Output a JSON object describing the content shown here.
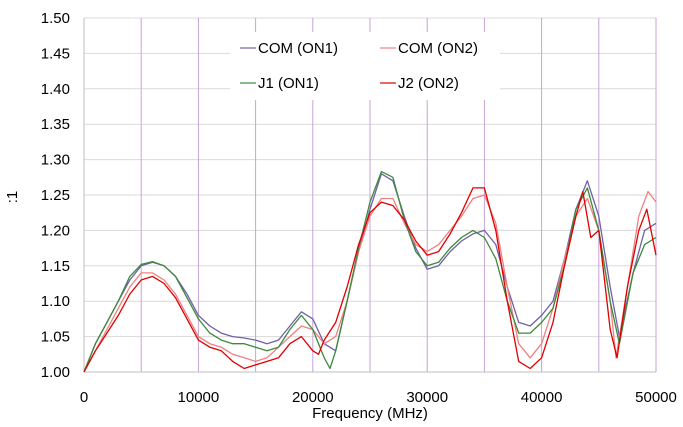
{
  "chart_data": {
    "type": "line",
    "xlabel": "Frequency (MHz)",
    "ylabel": ":1",
    "xlim": [
      0,
      50000
    ],
    "ylim": [
      1.0,
      1.5
    ],
    "x_ticks": [
      "0",
      "10000",
      "20000",
      "30000",
      "40000",
      "50000"
    ],
    "y_ticks": [
      "1.00",
      "1.05",
      "1.10",
      "1.15",
      "1.20",
      "1.25",
      "1.30",
      "1.35",
      "1.40",
      "1.45",
      "1.50"
    ],
    "grid": true,
    "vertical_gridlines_every": 5000,
    "legend_position": "top-center",
    "series": [
      {
        "name": "COM (ON1)",
        "color": "#7060A8",
        "points": [
          [
            0,
            1.0
          ],
          [
            1000,
            1.04
          ],
          [
            2000,
            1.07
          ],
          [
            3000,
            1.1
          ],
          [
            4000,
            1.13
          ],
          [
            5000,
            1.15
          ],
          [
            6000,
            1.155
          ],
          [
            7000,
            1.15
          ],
          [
            8000,
            1.135
          ],
          [
            9000,
            1.11
          ],
          [
            10000,
            1.08
          ],
          [
            11000,
            1.065
          ],
          [
            12000,
            1.055
          ],
          [
            13000,
            1.05
          ],
          [
            14000,
            1.048
          ],
          [
            15000,
            1.045
          ],
          [
            16000,
            1.04
          ],
          [
            17000,
            1.045
          ],
          [
            18000,
            1.065
          ],
          [
            19000,
            1.085
          ],
          [
            20000,
            1.075
          ],
          [
            21000,
            1.04
          ],
          [
            22000,
            1.03
          ],
          [
            23000,
            1.1
          ],
          [
            24000,
            1.17
          ],
          [
            25000,
            1.23
          ],
          [
            26000,
            1.28
          ],
          [
            27000,
            1.27
          ],
          [
            28000,
            1.22
          ],
          [
            29000,
            1.175
          ],
          [
            30000,
            1.145
          ],
          [
            31000,
            1.15
          ],
          [
            32000,
            1.17
          ],
          [
            33000,
            1.185
          ],
          [
            34000,
            1.195
          ],
          [
            35000,
            1.2
          ],
          [
            36000,
            1.18
          ],
          [
            37000,
            1.12
          ],
          [
            38000,
            1.07
          ],
          [
            39000,
            1.065
          ],
          [
            40000,
            1.08
          ],
          [
            41000,
            1.1
          ],
          [
            42000,
            1.16
          ],
          [
            43000,
            1.23
          ],
          [
            44000,
            1.27
          ],
          [
            45000,
            1.22
          ],
          [
            46000,
            1.12
          ],
          [
            46800,
            1.05
          ],
          [
            48000,
            1.14
          ],
          [
            49000,
            1.2
          ],
          [
            50000,
            1.21
          ]
        ]
      },
      {
        "name": "COM (ON2)",
        "color": "#F08080",
        "points": [
          [
            0,
            1.0
          ],
          [
            1000,
            1.03
          ],
          [
            2000,
            1.06
          ],
          [
            3000,
            1.09
          ],
          [
            4000,
            1.12
          ],
          [
            5000,
            1.14
          ],
          [
            6000,
            1.14
          ],
          [
            7000,
            1.13
          ],
          [
            8000,
            1.11
          ],
          [
            9000,
            1.08
          ],
          [
            10000,
            1.05
          ],
          [
            11000,
            1.04
          ],
          [
            12000,
            1.035
          ],
          [
            13000,
            1.025
          ],
          [
            14000,
            1.02
          ],
          [
            15000,
            1.015
          ],
          [
            16000,
            1.02
          ],
          [
            17000,
            1.035
          ],
          [
            18000,
            1.05
          ],
          [
            19000,
            1.065
          ],
          [
            20000,
            1.06
          ],
          [
            21000,
            1.04
          ],
          [
            22000,
            1.05
          ],
          [
            23000,
            1.1
          ],
          [
            24000,
            1.17
          ],
          [
            25000,
            1.22
          ],
          [
            26000,
            1.245
          ],
          [
            27000,
            1.245
          ],
          [
            28000,
            1.21
          ],
          [
            29000,
            1.18
          ],
          [
            30000,
            1.17
          ],
          [
            31000,
            1.18
          ],
          [
            32000,
            1.2
          ],
          [
            33000,
            1.22
          ],
          [
            34000,
            1.245
          ],
          [
            35000,
            1.25
          ],
          [
            36000,
            1.21
          ],
          [
            37000,
            1.12
          ],
          [
            38000,
            1.04
          ],
          [
            39000,
            1.02
          ],
          [
            40000,
            1.04
          ],
          [
            41000,
            1.09
          ],
          [
            42000,
            1.16
          ],
          [
            43000,
            1.22
          ],
          [
            44000,
            1.245
          ],
          [
            45000,
            1.2
          ],
          [
            46000,
            1.1
          ],
          [
            46500,
            1.02
          ],
          [
            47500,
            1.12
          ],
          [
            48500,
            1.22
          ],
          [
            49300,
            1.255
          ],
          [
            50000,
            1.24
          ]
        ]
      },
      {
        "name": "J1 (ON1)",
        "color": "#3C8A3C",
        "points": [
          [
            0,
            1.0
          ],
          [
            1000,
            1.04
          ],
          [
            2000,
            1.07
          ],
          [
            3000,
            1.1
          ],
          [
            4000,
            1.135
          ],
          [
            5000,
            1.152
          ],
          [
            6000,
            1.156
          ],
          [
            7000,
            1.15
          ],
          [
            8000,
            1.135
          ],
          [
            9000,
            1.105
          ],
          [
            10000,
            1.075
          ],
          [
            11000,
            1.055
          ],
          [
            12000,
            1.045
          ],
          [
            13000,
            1.04
          ],
          [
            14000,
            1.04
          ],
          [
            15000,
            1.035
          ],
          [
            16000,
            1.03
          ],
          [
            17000,
            1.035
          ],
          [
            18000,
            1.06
          ],
          [
            19000,
            1.08
          ],
          [
            20000,
            1.06
          ],
          [
            21000,
            1.02
          ],
          [
            21500,
            1.005
          ],
          [
            22000,
            1.03
          ],
          [
            23000,
            1.1
          ],
          [
            24000,
            1.175
          ],
          [
            25000,
            1.24
          ],
          [
            26000,
            1.283
          ],
          [
            27000,
            1.275
          ],
          [
            28000,
            1.215
          ],
          [
            29000,
            1.17
          ],
          [
            30000,
            1.15
          ],
          [
            31000,
            1.155
          ],
          [
            32000,
            1.175
          ],
          [
            33000,
            1.19
          ],
          [
            34000,
            1.2
          ],
          [
            35000,
            1.19
          ],
          [
            36000,
            1.16
          ],
          [
            37000,
            1.1
          ],
          [
            38000,
            1.055
          ],
          [
            39000,
            1.055
          ],
          [
            40000,
            1.07
          ],
          [
            41000,
            1.09
          ],
          [
            42000,
            1.15
          ],
          [
            43000,
            1.23
          ],
          [
            44000,
            1.26
          ],
          [
            45000,
            1.2
          ],
          [
            46000,
            1.1
          ],
          [
            46800,
            1.04
          ],
          [
            48000,
            1.14
          ],
          [
            49000,
            1.18
          ],
          [
            50000,
            1.19
          ]
        ]
      },
      {
        "name": "J2 (ON2)",
        "color": "#E00000",
        "points": [
          [
            0,
            1.0
          ],
          [
            1000,
            1.03
          ],
          [
            2000,
            1.055
          ],
          [
            3000,
            1.08
          ],
          [
            4000,
            1.11
          ],
          [
            5000,
            1.13
          ],
          [
            6000,
            1.135
          ],
          [
            7000,
            1.125
          ],
          [
            8000,
            1.105
          ],
          [
            9000,
            1.075
          ],
          [
            10000,
            1.045
          ],
          [
            11000,
            1.035
          ],
          [
            12000,
            1.03
          ],
          [
            13000,
            1.015
          ],
          [
            14000,
            1.005
          ],
          [
            15000,
            1.01
          ],
          [
            16000,
            1.015
          ],
          [
            17000,
            1.02
          ],
          [
            18000,
            1.04
          ],
          [
            19000,
            1.05
          ],
          [
            20000,
            1.03
          ],
          [
            20500,
            1.025
          ],
          [
            21000,
            1.045
          ],
          [
            22000,
            1.07
          ],
          [
            23000,
            1.12
          ],
          [
            24000,
            1.18
          ],
          [
            25000,
            1.225
          ],
          [
            26000,
            1.24
          ],
          [
            27000,
            1.235
          ],
          [
            28000,
            1.215
          ],
          [
            29000,
            1.185
          ],
          [
            30000,
            1.165
          ],
          [
            31000,
            1.17
          ],
          [
            32000,
            1.195
          ],
          [
            33000,
            1.225
          ],
          [
            34000,
            1.26
          ],
          [
            35000,
            1.26
          ],
          [
            36000,
            1.2
          ],
          [
            37000,
            1.1
          ],
          [
            38000,
            1.015
          ],
          [
            39000,
            1.005
          ],
          [
            40000,
            1.02
          ],
          [
            41000,
            1.07
          ],
          [
            42000,
            1.15
          ],
          [
            43000,
            1.22
          ],
          [
            43600,
            1.255
          ],
          [
            44300,
            1.19
          ],
          [
            45000,
            1.2
          ],
          [
            46000,
            1.06
          ],
          [
            46600,
            1.02
          ],
          [
            47500,
            1.12
          ],
          [
            48500,
            1.2
          ],
          [
            49200,
            1.23
          ],
          [
            50000,
            1.165
          ]
        ]
      }
    ]
  }
}
